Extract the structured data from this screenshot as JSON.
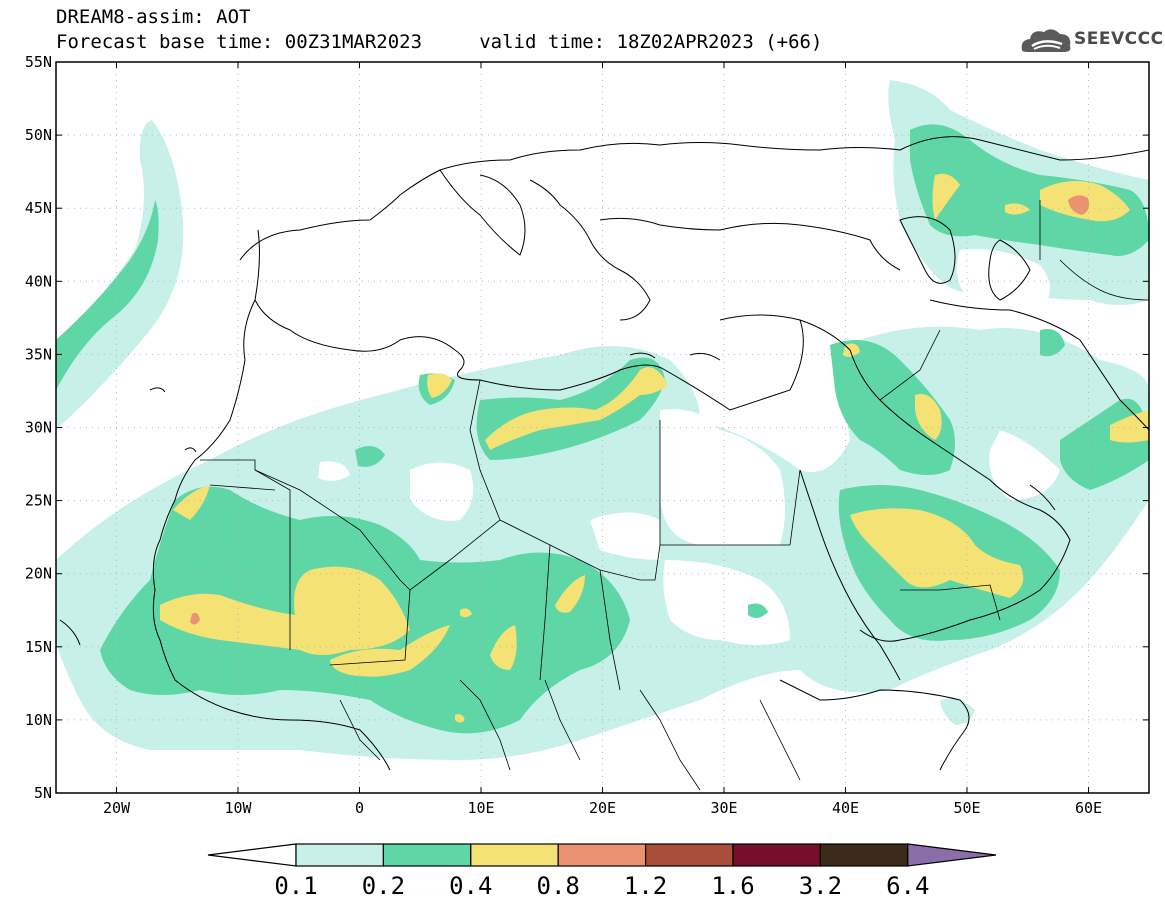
{
  "header": {
    "title": "DREAM8-assim: AOT",
    "subtitle": "Forecast base time: 00Z31MAR2023     valid time: 18Z02APR2023 (+66)",
    "logo_text": "SEEVCCC"
  },
  "map": {
    "lon_labels": [
      "20W",
      "10W",
      "0",
      "10E",
      "20E",
      "30E",
      "40E",
      "50E",
      "60E"
    ],
    "lat_labels": [
      "55N",
      "50N",
      "45N",
      "40N",
      "35N",
      "30N",
      "25N",
      "20N",
      "15N",
      "10N",
      "5N"
    ]
  },
  "legend": {
    "title": "",
    "ticks": [
      "0.1",
      "0.2",
      "0.4",
      "0.8",
      "1.2",
      "1.6",
      "3.2",
      "6.4"
    ],
    "colors": [
      "#c6f0e8",
      "#5ed6a6",
      "#f4e274",
      "#ea9370",
      "#a84e3a",
      "#760f2b",
      "#3c2a1a",
      "#8a6ea8"
    ]
  }
}
